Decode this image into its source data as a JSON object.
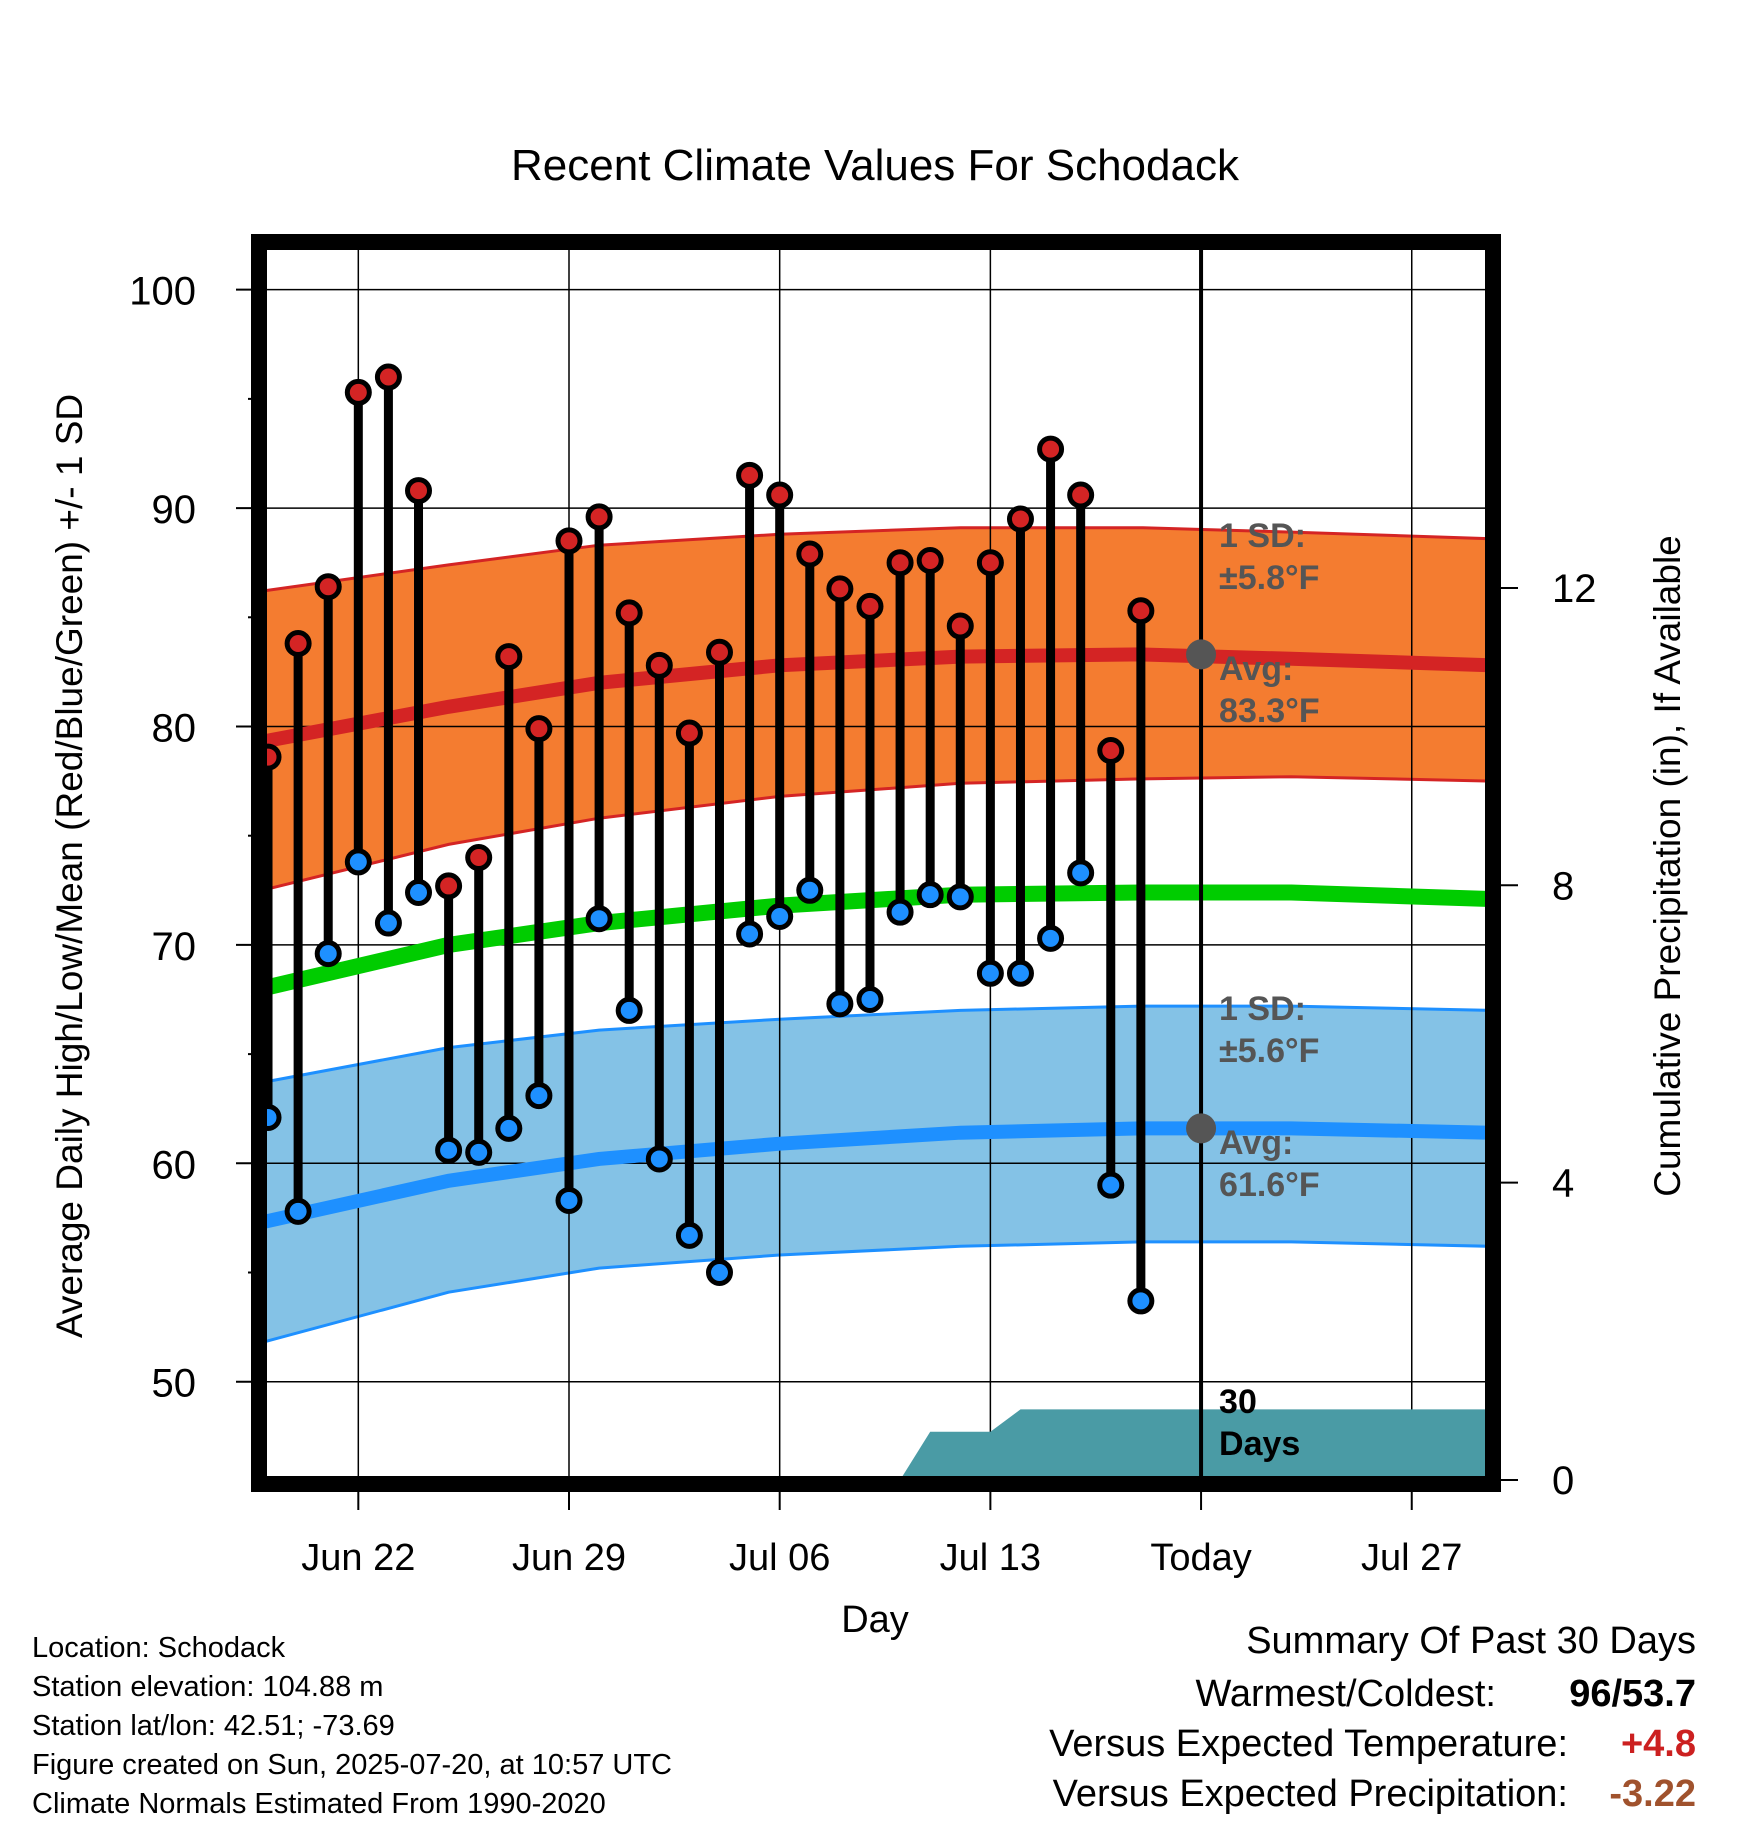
{
  "chart_data": {
    "type": "line",
    "title": "Recent Climate Values For Schodack",
    "xlabel": "Day",
    "ylabel": "Average Daily High/Low/Mean (Red/Blue/Green) +/- 1 SD",
    "ylabel_right": "Cumulative Precipitation (in), If Available",
    "y_ticks": [
      "50",
      "60",
      "70",
      "80",
      "90",
      "100"
    ],
    "y_right_ticks": [
      "0",
      "4",
      "8",
      "12"
    ],
    "x_ticks": [
      {
        "day": 22,
        "label": "Jun 22"
      },
      {
        "day": 29,
        "label": "Jun 29"
      },
      {
        "day": 36,
        "label": "Jul 06"
      },
      {
        "day": 43,
        "label": "Jul 13"
      },
      {
        "day": 50,
        "label": "Today"
      },
      {
        "day": 57,
        "label": "Jul 27"
      }
    ],
    "xlim_day": [
      18.8,
      59.6
    ],
    "ylim": [
      45.5,
      102
    ],
    "y_right_lim": [
      0,
      16.6
    ],
    "colors": {
      "high": "#d42424",
      "low": "#1e90ff",
      "mean": "#00cc00",
      "high_band": "#f47c30",
      "low_band": "#84c2e6",
      "precip": "#4a9ba5",
      "annot": "#555555",
      "warm": "#cc2020",
      "dry": "#a0522d"
    },
    "daily": {
      "days": [
        19,
        20,
        21,
        22,
        23,
        24,
        25,
        26,
        27,
        28,
        29,
        30,
        31,
        32,
        33,
        34,
        35,
        36,
        37,
        38,
        39,
        40,
        41,
        42,
        43,
        44,
        45,
        46,
        47,
        48,
        49
      ],
      "high": [
        78.6,
        83.8,
        86.4,
        95.3,
        96.0,
        90.8,
        72.7,
        74.0,
        83.2,
        79.9,
        88.5,
        89.6,
        85.2,
        82.8,
        79.7,
        83.4,
        91.5,
        90.6,
        87.9,
        86.3,
        85.5,
        87.5,
        87.6,
        84.6,
        87.5,
        89.5,
        92.7,
        90.6,
        78.9,
        85.3,
        null
      ],
      "low": [
        62.1,
        57.8,
        69.6,
        73.8,
        71.0,
        72.4,
        60.6,
        60.5,
        61.6,
        63.1,
        58.3,
        71.2,
        67.0,
        60.2,
        56.7,
        55.0,
        70.5,
        71.3,
        72.5,
        67.3,
        67.5,
        71.5,
        72.3,
        72.2,
        68.7,
        68.7,
        70.3,
        73.3,
        59.0,
        53.7,
        null
      ]
    },
    "normals": {
      "days": [
        18.8,
        25,
        30,
        36,
        42,
        48,
        53,
        59.6
      ],
      "high_avg": [
        79.3,
        80.9,
        82.0,
        82.8,
        83.2,
        83.3,
        83.1,
        82.8
      ],
      "high_upper": [
        86.2,
        87.4,
        88.3,
        88.8,
        89.1,
        89.1,
        88.9,
        88.6
      ],
      "high_lower": [
        72.5,
        74.6,
        75.8,
        76.8,
        77.4,
        77.6,
        77.7,
        77.5
      ],
      "mean": [
        68.0,
        70.0,
        71.0,
        71.8,
        72.3,
        72.4,
        72.4,
        72.1
      ],
      "low_avg": [
        57.3,
        59.2,
        60.2,
        60.9,
        61.4,
        61.6,
        61.6,
        61.4
      ],
      "low_upper": [
        63.7,
        65.3,
        66.1,
        66.6,
        67.0,
        67.2,
        67.2,
        67.0
      ],
      "low_lower": [
        51.8,
        54.1,
        55.2,
        55.8,
        56.2,
        56.4,
        56.4,
        56.2
      ]
    },
    "precip": {
      "days": [
        40,
        41,
        43,
        44,
        59.6
      ],
      "values": [
        0,
        0.65,
        0.65,
        0.95,
        0.95
      ]
    },
    "annotations": {
      "high_sd_line1": "1 SD:",
      "high_sd_line2": "±5.8°F",
      "high_avg_line1": "Avg:",
      "high_avg_line2": "83.3°F",
      "low_sd_line1": "1 SD:",
      "low_sd_line2": "±5.6°F",
      "low_avg_line1": "Avg:",
      "low_avg_line2": "61.6°F",
      "days_line1": "30",
      "days_line2": "Days"
    }
  },
  "info": {
    "location": "Location: Schodack",
    "elevation": "Station elevation: 104.88 m",
    "latlon": "Station lat/lon: 42.51; -73.69",
    "created": "Figure created on Sun, 2025-07-20, at 10:57 UTC",
    "normals": "Climate Normals Estimated From 1990-2020"
  },
  "summary": {
    "title": "Summary Of Past 30 Days",
    "warmest_coldest_label": "Warmest/Coldest:",
    "warmest": "96",
    "coldest": "53.7",
    "temp_label": "Versus Expected Temperature:",
    "temp_value": "+4.8",
    "precip_label": "Versus Expected Precipitation:",
    "precip_value": "-3.22"
  }
}
